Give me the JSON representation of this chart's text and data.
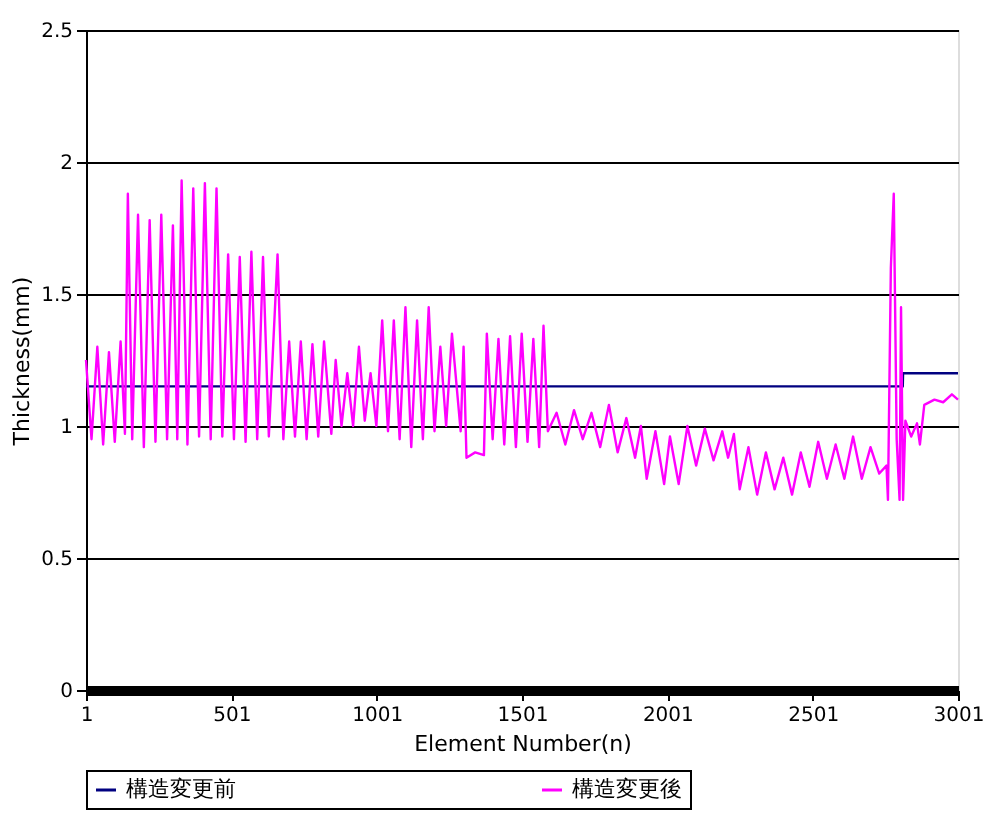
{
  "chart_data": {
    "type": "line",
    "xlabel": "Element Number(n)",
    "ylabel": "Thickness(mm)",
    "xlim": [
      1,
      3001
    ],
    "xticks": [
      1,
      501,
      1001,
      1501,
      2001,
      2501,
      3001
    ],
    "ylim": [
      0,
      2.5
    ],
    "yticks": [
      0,
      0.5,
      1,
      1.5,
      2,
      2.5
    ],
    "grid": "y",
    "legend": "bottom",
    "marker": "none",
    "line_style": "solid",
    "series": [
      {
        "name": "構造変更前",
        "color": "#000080",
        "x": [
          1,
          2811,
          2812,
          3001
        ],
        "values": [
          1.15,
          1.15,
          1.2,
          1.2
        ]
      },
      {
        "name": "構造変更後",
        "color": "#ff00ff",
        "x": [
          1,
          20,
          40,
          60,
          80,
          100,
          120,
          135,
          145,
          160,
          180,
          200,
          220,
          240,
          260,
          280,
          300,
          315,
          330,
          350,
          370,
          390,
          410,
          430,
          450,
          470,
          490,
          510,
          530,
          550,
          570,
          590,
          610,
          630,
          660,
          680,
          700,
          720,
          740,
          760,
          780,
          800,
          820,
          845,
          860,
          880,
          900,
          920,
          940,
          960,
          980,
          1000,
          1020,
          1040,
          1060,
          1080,
          1100,
          1120,
          1140,
          1160,
          1180,
          1200,
          1220,
          1240,
          1260,
          1290,
          1300,
          1310,
          1340,
          1370,
          1380,
          1400,
          1420,
          1440,
          1460,
          1480,
          1500,
          1520,
          1540,
          1560,
          1575,
          1590,
          1620,
          1650,
          1680,
          1710,
          1740,
          1770,
          1800,
          1830,
          1860,
          1890,
          1910,
          1930,
          1960,
          1990,
          2010,
          2040,
          2070,
          2100,
          2130,
          2160,
          2190,
          2210,
          2230,
          2250,
          2280,
          2310,
          2340,
          2370,
          2400,
          2430,
          2460,
          2490,
          2520,
          2550,
          2580,
          2610,
          2640,
          2670,
          2700,
          2730,
          2755,
          2760,
          2770,
          2780,
          2790,
          2800,
          2805,
          2812,
          2820,
          2840,
          2860,
          2870,
          2885,
          2920,
          2950,
          2980,
          3001
        ],
        "values": [
          1.25,
          0.95,
          1.3,
          0.93,
          1.28,
          0.94,
          1.32,
          0.97,
          1.88,
          0.95,
          1.8,
          0.92,
          1.78,
          0.94,
          1.8,
          0.95,
          1.76,
          0.95,
          1.93,
          0.93,
          1.9,
          0.96,
          1.92,
          0.95,
          1.9,
          0.96,
          1.65,
          0.95,
          1.64,
          0.94,
          1.66,
          0.95,
          1.64,
          0.96,
          1.65,
          0.95,
          1.32,
          0.96,
          1.32,
          0.95,
          1.31,
          0.96,
          1.32,
          0.97,
          1.25,
          1.0,
          1.2,
          1.0,
          1.3,
          1.02,
          1.2,
          1.0,
          1.4,
          0.98,
          1.4,
          0.95,
          1.45,
          0.92,
          1.4,
          0.95,
          1.45,
          0.98,
          1.3,
          1.0,
          1.35,
          0.98,
          1.3,
          0.88,
          0.9,
          0.89,
          1.35,
          0.95,
          1.33,
          0.93,
          1.34,
          0.92,
          1.35,
          0.94,
          1.33,
          0.92,
          1.38,
          0.98,
          1.05,
          0.93,
          1.06,
          0.95,
          1.05,
          0.92,
          1.08,
          0.9,
          1.03,
          0.88,
          1.0,
          0.8,
          0.98,
          0.78,
          0.96,
          0.78,
          1.0,
          0.85,
          0.99,
          0.87,
          0.98,
          0.88,
          0.97,
          0.76,
          0.92,
          0.74,
          0.9,
          0.76,
          0.88,
          0.74,
          0.9,
          0.77,
          0.94,
          0.8,
          0.93,
          0.8,
          0.96,
          0.8,
          0.92,
          0.82,
          0.85,
          0.72,
          1.6,
          1.88,
          0.95,
          0.72,
          1.45,
          0.72,
          1.02,
          0.96,
          1.01,
          0.93,
          1.08,
          1.1,
          1.09,
          1.12,
          1.1
        ]
      }
    ]
  }
}
